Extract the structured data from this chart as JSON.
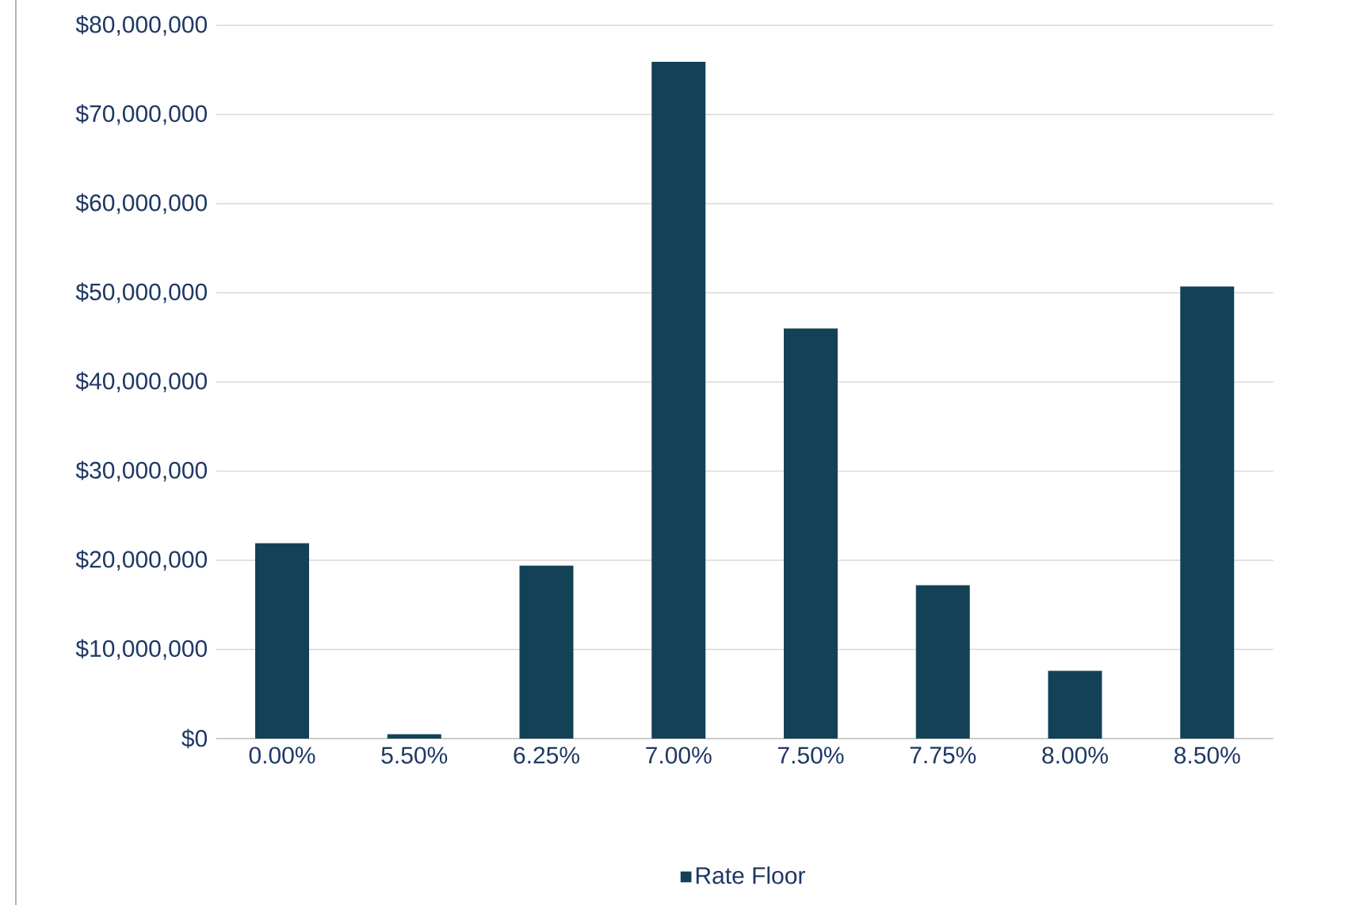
{
  "chart_data": {
    "type": "bar",
    "categories": [
      "0.00%",
      "5.50%",
      "6.25%",
      "7.00%",
      "7.50%",
      "7.75%",
      "8.00%",
      "8.50%"
    ],
    "series": [
      {
        "name": "Rate Floor",
        "color": "#134257",
        "values": [
          21900000,
          500000,
          19400000,
          75900000,
          46000000,
          17200000,
          7600000,
          50700000
        ]
      }
    ],
    "ylim": [
      0,
      80000000
    ],
    "yticks": [
      {
        "value": 0,
        "label": "$0"
      },
      {
        "value": 10000000,
        "label": "$10,000,000"
      },
      {
        "value": 20000000,
        "label": "$20,000,000"
      },
      {
        "value": 30000000,
        "label": "$30,000,000"
      },
      {
        "value": 40000000,
        "label": "$40,000,000"
      },
      {
        "value": 50000000,
        "label": "$50,000,000"
      },
      {
        "value": 60000000,
        "label": "$60,000,000"
      },
      {
        "value": 70000000,
        "label": "$70,000,000"
      },
      {
        "value": 80000000,
        "label": "$80,000,000"
      }
    ],
    "grid": "y",
    "legend": "bottom"
  }
}
